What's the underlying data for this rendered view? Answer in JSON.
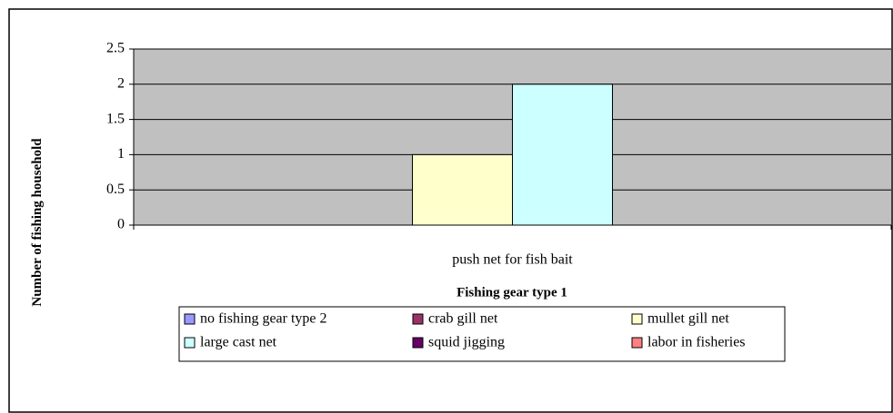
{
  "chart_data": {
    "type": "bar",
    "x_label": "Fishing gear type 1",
    "y_label": "Number of fishing household",
    "categories": [
      "push net for fish bait"
    ],
    "series": [
      {
        "name": "no fishing gear type 2",
        "color": "#9999ff",
        "values": [
          0
        ]
      },
      {
        "name": "crab gill net",
        "color": "#993366",
        "values": [
          0
        ]
      },
      {
        "name": "mullet gill net",
        "color": "#ffffcc",
        "values": [
          1
        ]
      },
      {
        "name": "large cast net",
        "color": "#ccffff",
        "values": [
          2
        ]
      },
      {
        "name": "squid jigging",
        "color": "#660066",
        "values": [
          0
        ]
      },
      {
        "name": "labor in fisheries",
        "color": "#ff8080",
        "values": [
          0
        ]
      }
    ],
    "ylim": [
      0,
      2.5
    ],
    "yticks": [
      0,
      0.5,
      1,
      1.5,
      2,
      2.5
    ],
    "grid": true,
    "plot_color": "#c0c0c0",
    "legend": "bottom"
  }
}
